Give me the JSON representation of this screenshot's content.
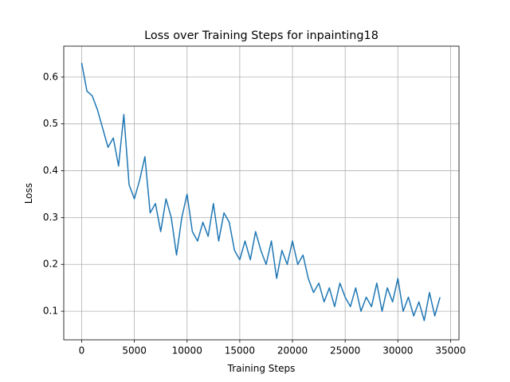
{
  "chart_data": {
    "type": "line",
    "title": "Loss over Training Steps for inpainting18",
    "x_label": "Training Steps",
    "y_label": "Loss",
    "x": [
      0,
      500,
      1000,
      1500,
      2000,
      2500,
      3000,
      3500,
      4000,
      4500,
      5000,
      5500,
      6000,
      6500,
      7000,
      7500,
      8000,
      8500,
      9000,
      9500,
      10000,
      10500,
      11000,
      11500,
      12000,
      12500,
      13000,
      13500,
      14000,
      14500,
      15000,
      15500,
      16000,
      16500,
      17000,
      17500,
      18000,
      18500,
      19000,
      19500,
      20000,
      20500,
      21000,
      21500,
      22000,
      22500,
      23000,
      23500,
      24000,
      24500,
      25000,
      25500,
      26000,
      26500,
      27000,
      27500,
      28000,
      28500,
      29000,
      29500,
      30000,
      30500,
      31000,
      31500,
      32000,
      32500,
      33000,
      33500,
      34000
    ],
    "series": [
      {
        "name": "Loss",
        "color": "#1f77b4",
        "values": [
          0.63,
          0.57,
          0.56,
          0.53,
          0.49,
          0.45,
          0.47,
          0.41,
          0.52,
          0.37,
          0.34,
          0.38,
          0.43,
          0.31,
          0.33,
          0.27,
          0.34,
          0.3,
          0.22,
          0.3,
          0.35,
          0.27,
          0.25,
          0.29,
          0.26,
          0.33,
          0.25,
          0.31,
          0.29,
          0.23,
          0.21,
          0.25,
          0.21,
          0.27,
          0.23,
          0.2,
          0.25,
          0.17,
          0.23,
          0.2,
          0.25,
          0.2,
          0.22,
          0.17,
          0.14,
          0.16,
          0.12,
          0.15,
          0.11,
          0.16,
          0.13,
          0.11,
          0.15,
          0.1,
          0.13,
          0.11,
          0.16,
          0.1,
          0.15,
          0.12,
          0.17,
          0.1,
          0.13,
          0.09,
          0.12,
          0.08,
          0.14,
          0.09,
          0.13
        ]
      }
    ],
    "xlim": [
      -1700,
      35800
    ],
    "ylim": [
      0.039,
      0.666
    ],
    "xticks": [
      0,
      5000,
      10000,
      15000,
      20000,
      25000,
      30000,
      35000
    ],
    "yticks": [
      0.1,
      0.2,
      0.3,
      0.4,
      0.5,
      0.6
    ],
    "grid": true
  }
}
